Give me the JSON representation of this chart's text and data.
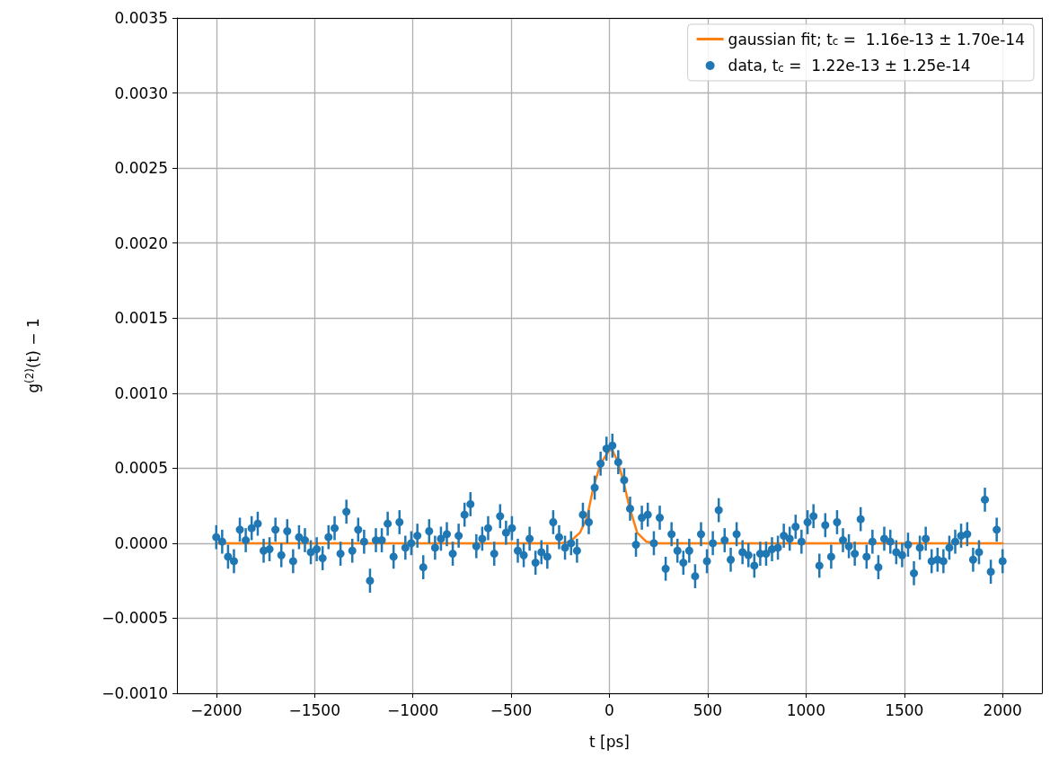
{
  "chart_data": {
    "type": "scatter",
    "xlabel": "t [ps]",
    "ylabel": "g$^{(2)}$(t) − 1",
    "xlim": [
      -2200,
      2200
    ],
    "ylim": [
      -0.001,
      0.0035
    ],
    "xticks": [
      {
        "value": -2000,
        "label": "−2000"
      },
      {
        "value": -1500,
        "label": "−1500"
      },
      {
        "value": -1000,
        "label": "−1000"
      },
      {
        "value": -500,
        "label": "−500"
      },
      0,
      500,
      1000,
      1500,
      2000
    ],
    "yticks": [
      {
        "value": -0.001,
        "label": "−0.0010"
      },
      {
        "value": -0.0005,
        "label": "−0.0005"
      },
      {
        "value": 0,
        "label": "0.0000"
      },
      {
        "value": 0.0005,
        "label": "0.0005"
      },
      {
        "value": 0.001,
        "label": "0.0010"
      },
      {
        "value": 0.0015,
        "label": "0.0015"
      },
      {
        "value": 0.002,
        "label": "0.0020"
      },
      {
        "value": 0.0025,
        "label": "0.0025"
      },
      {
        "value": 0.003,
        "label": "0.0030"
      },
      {
        "value": 0.0035,
        "label": "0.0035"
      }
    ],
    "grid": true,
    "legend": "top right",
    "series": [
      {
        "type": "line",
        "name": "gaussian fit; t$_{c}$ =  1.16e-13 ± 1.70e-14",
        "color": "#ff7f0e",
        "x": [
          -2000,
          -250,
          -200,
          -150,
          -114,
          -82,
          -45,
          0,
          15,
          40,
          68,
          100,
          141,
          187,
          250,
          2000
        ],
        "values": [
          0,
          0,
          1e-05,
          7e-05,
          0.00017,
          0.00037,
          0.00053,
          0.00062,
          0.00062,
          0.00055,
          0.00043,
          0.00025,
          7e-05,
          1e-05,
          0,
          0
        ]
      },
      {
        "name": "data, t$_{c}$ =  1.22e-13 ± 1.25e-14",
        "color": "#1f77b4",
        "marker": "circle",
        "x": [
          -2000,
          -1970,
          -1940,
          -1910,
          -1880,
          -1850,
          -1820,
          -1789,
          -1759,
          -1729,
          -1699,
          -1669,
          -1639,
          -1609,
          -1579,
          -1549,
          -1519,
          -1489,
          -1459,
          -1429,
          -1398,
          -1368,
          -1338,
          -1308,
          -1278,
          -1248,
          -1218,
          -1188,
          -1158,
          -1128,
          -1098,
          -1068,
          -1038,
          -1008,
          -977,
          -947,
          -917,
          -887,
          -857,
          -827,
          -797,
          -767,
          -737,
          -707,
          -677,
          -647,
          -617,
          -586,
          -556,
          -526,
          -496,
          -466,
          -436,
          -406,
          -376,
          -346,
          -316,
          -286,
          -256,
          -226,
          -195,
          -165,
          -135,
          -105,
          -75,
          -45,
          -15,
          15,
          45,
          75,
          105,
          135,
          165,
          195,
          226,
          256,
          286,
          316,
          346,
          376,
          406,
          436,
          466,
          496,
          526,
          556,
          586,
          617,
          647,
          677,
          707,
          737,
          767,
          797,
          827,
          857,
          887,
          917,
          947,
          977,
          1008,
          1038,
          1068,
          1098,
          1128,
          1158,
          1188,
          1218,
          1248,
          1278,
          1308,
          1338,
          1368,
          1398,
          1429,
          1459,
          1489,
          1519,
          1549,
          1579,
          1609,
          1639,
          1669,
          1699,
          1729,
          1759,
          1789,
          1820,
          1850,
          1880,
          1910,
          1940,
          1970,
          2000
        ],
        "values": [
          4e-05,
          1e-05,
          -9e-05,
          -0.00012,
          9e-05,
          2e-05,
          0.0001,
          0.00013,
          -5e-05,
          -4e-05,
          9e-05,
          -8e-05,
          8e-05,
          -0.00012,
          4e-05,
          2e-05,
          -6e-05,
          -4e-05,
          -0.0001,
          4e-05,
          0.0001,
          -7e-05,
          0.00021,
          -5e-05,
          9e-05,
          1e-05,
          -0.00025,
          2e-05,
          2e-05,
          0.00013,
          -9e-05,
          0.00014,
          -3e-05,
          0,
          5e-05,
          -0.00016,
          8e-05,
          -3e-05,
          3e-05,
          6e-05,
          -7e-05,
          5e-05,
          0.00019,
          0.00026,
          -2e-05,
          3e-05,
          0.0001,
          -7e-05,
          0.00018,
          7e-05,
          0.0001,
          -5e-05,
          -8e-05,
          3e-05,
          -0.00013,
          -6e-05,
          -9e-05,
          0.00014,
          4e-05,
          -3e-05,
          0,
          -5e-05,
          0.00019,
          0.00014,
          0.00037,
          0.00053,
          0.00063,
          0.00065,
          0.00054,
          0.00042,
          0.00023,
          -1e-05,
          0.00017,
          0.00019,
          0,
          0.00017,
          -0.00017,
          6e-05,
          -5e-05,
          -0.00013,
          -5e-05,
          -0.00022,
          6e-05,
          -0.00012,
          0,
          0.00022,
          2e-05,
          -0.00011,
          6e-05,
          -6e-05,
          -8e-05,
          -0.00015,
          -7e-05,
          -7e-05,
          -4e-05,
          -3e-05,
          5e-05,
          3e-05,
          0.00011,
          1e-05,
          0.00014,
          0.00018,
          -0.00015,
          0.00012,
          -9e-05,
          0.00014,
          2e-05,
          -2e-05,
          -7e-05,
          0.00016,
          -9e-05,
          1e-05,
          -0.00016,
          3e-05,
          1e-05,
          -6e-05,
          -8e-05,
          -1e-05,
          -0.0002,
          -3e-05,
          3e-05,
          -0.00012,
          -0.00011,
          -0.00012,
          -3e-05,
          1e-05,
          5e-05,
          6e-05,
          -0.00011,
          -6e-05,
          0.00029,
          -0.00019,
          9e-05,
          -0.00012
        ],
        "errors": [
          8e-05,
          8e-05,
          8e-05,
          8e-05,
          8e-05,
          8e-05,
          8e-05,
          8e-05,
          8e-05,
          8e-05,
          8e-05,
          8e-05,
          8e-05,
          8e-05,
          8e-05,
          8e-05,
          8e-05,
          8e-05,
          8e-05,
          8e-05,
          8e-05,
          8e-05,
          8e-05,
          8e-05,
          8e-05,
          8e-05,
          8e-05,
          8e-05,
          8e-05,
          8e-05,
          8e-05,
          8e-05,
          8e-05,
          8e-05,
          8e-05,
          8e-05,
          8e-05,
          8e-05,
          8e-05,
          8e-05,
          8e-05,
          8e-05,
          8e-05,
          8e-05,
          8e-05,
          8e-05,
          8e-05,
          8e-05,
          8e-05,
          8e-05,
          8e-05,
          8e-05,
          8e-05,
          8e-05,
          8e-05,
          8e-05,
          8e-05,
          8e-05,
          8e-05,
          8e-05,
          8e-05,
          8e-05,
          8e-05,
          8e-05,
          8e-05,
          8e-05,
          8e-05,
          8e-05,
          8e-05,
          8e-05,
          8e-05,
          8e-05,
          8e-05,
          8e-05,
          8e-05,
          8e-05,
          8e-05,
          8e-05,
          8e-05,
          8e-05,
          8e-05,
          8e-05,
          8e-05,
          8e-05,
          8e-05,
          8e-05,
          8e-05,
          8e-05,
          8e-05,
          8e-05,
          8e-05,
          8e-05,
          8e-05,
          8e-05,
          8e-05,
          8e-05,
          8e-05,
          8e-05,
          8e-05,
          8e-05,
          8e-05,
          8e-05,
          8e-05,
          8e-05,
          8e-05,
          8e-05,
          8e-05,
          8e-05,
          8e-05,
          8e-05,
          8e-05,
          8e-05,
          8e-05,
          8e-05,
          8e-05,
          8e-05,
          8e-05,
          8e-05,
          8e-05,
          8e-05,
          8e-05,
          8e-05,
          8e-05,
          8e-05,
          8e-05,
          8e-05,
          8e-05,
          8e-05,
          8e-05,
          8e-05,
          8e-05,
          8e-05,
          8e-05,
          8e-05
        ]
      }
    ]
  }
}
